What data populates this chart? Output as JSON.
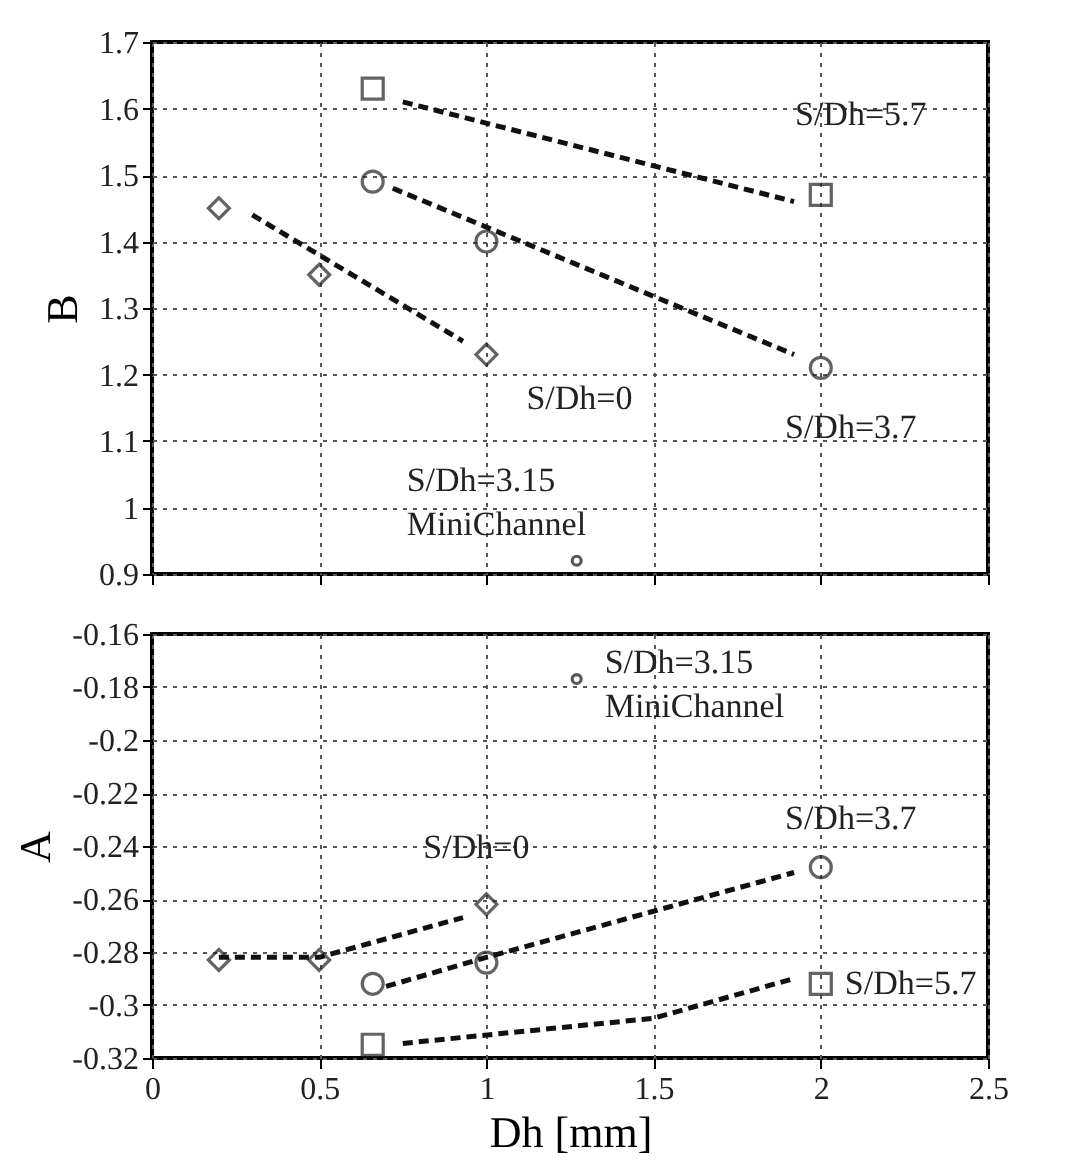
{
  "chart_data": [
    {
      "type": "scatter",
      "ylabel": "B",
      "xlim": [
        0,
        2.5
      ],
      "xticks": [
        0,
        0.5,
        1,
        1.5,
        2,
        2.5
      ],
      "ylim": [
        0.9,
        1.7
      ],
      "yticks": [
        0.9,
        1,
        1.1,
        1.2,
        1.3,
        1.4,
        1.5,
        1.6,
        1.7
      ],
      "grid": true,
      "tick_labels": "y",
      "series": [
        {
          "name": "S/Dh=0",
          "marker": "diamond",
          "color": "#222222",
          "x": [
            0.2,
            0.5,
            1.0
          ],
          "values": [
            1.45,
            1.35,
            1.23
          ]
        },
        {
          "name": "S/Dh=3.7",
          "marker": "circle",
          "color": "#222222",
          "x": [
            0.66,
            1.0,
            2.0
          ],
          "values": [
            1.49,
            1.4,
            1.21
          ]
        },
        {
          "name": "S/Dh=5.7",
          "marker": "square",
          "color": "#222222",
          "x": [
            0.66,
            2.0
          ],
          "values": [
            1.63,
            1.47
          ]
        },
        {
          "name": "S/Dh=3.15 MiniChannel",
          "marker": "circle",
          "color": "#111111",
          "x": [
            1.27
          ],
          "values": [
            0.92
          ]
        },
        {
          "type": "line",
          "line_style": "dashed",
          "marker": "none",
          "color": "#111111",
          "x": [
            0.3,
            0.93
          ],
          "values": [
            1.44,
            1.25
          ]
        },
        {
          "type": "line",
          "line_style": "dashed",
          "marker": "none",
          "color": "#111111",
          "x": [
            0.72,
            1.92
          ],
          "values": [
            1.48,
            1.23
          ]
        },
        {
          "type": "line",
          "line_style": "dashed",
          "marker": "none",
          "color": "#111111",
          "x": [
            0.75,
            1.92
          ],
          "values": [
            1.61,
            1.46
          ]
        }
      ]
    },
    {
      "type": "scatter",
      "xlabel": "Dh [mm]",
      "ylabel": "A",
      "xlim": [
        0,
        2.5
      ],
      "xticks": [
        0,
        0.5,
        1,
        1.5,
        2,
        2.5
      ],
      "ylim": [
        -0.32,
        -0.16
      ],
      "yticks": [
        -0.32,
        -0.3,
        -0.28,
        -0.26,
        -0.24,
        -0.22,
        -0.2,
        -0.18,
        -0.16
      ],
      "grid": true,
      "series": [
        {
          "name": "S/Dh=0",
          "marker": "diamond",
          "color": "#222222",
          "x": [
            0.2,
            0.5,
            1.0
          ],
          "values": [
            -0.283,
            -0.283,
            -0.262
          ]
        },
        {
          "name": "S/Dh=3.7",
          "marker": "circle",
          "color": "#222222",
          "x": [
            0.66,
            1.0,
            2.0
          ],
          "values": [
            -0.292,
            -0.284,
            -0.248
          ]
        },
        {
          "name": "S/Dh=5.7",
          "marker": "square",
          "color": "#222222",
          "x": [
            0.66,
            2.0
          ],
          "values": [
            -0.315,
            -0.292
          ]
        },
        {
          "name": "S/Dh=3.15 MiniChannel",
          "marker": "circle",
          "color": "#111111",
          "x": [
            1.27
          ],
          "values": [
            -0.177
          ]
        },
        {
          "type": "line",
          "line_style": "dashed",
          "marker": "none",
          "color": "#111111",
          "x": [
            0.2,
            0.5,
            0.93
          ],
          "values": [
            -0.282,
            -0.282,
            -0.267
          ]
        },
        {
          "type": "line",
          "line_style": "dashed",
          "marker": "none",
          "color": "#111111",
          "x": [
            0.7,
            1.0,
            1.92
          ],
          "values": [
            -0.293,
            -0.282,
            -0.25
          ]
        },
        {
          "type": "line",
          "line_style": "dashed",
          "marker": "none",
          "color": "#111111",
          "x": [
            0.75,
            1.5,
            1.92
          ],
          "values": [
            -0.3145,
            -0.305,
            -0.29
          ]
        }
      ]
    }
  ]
}
